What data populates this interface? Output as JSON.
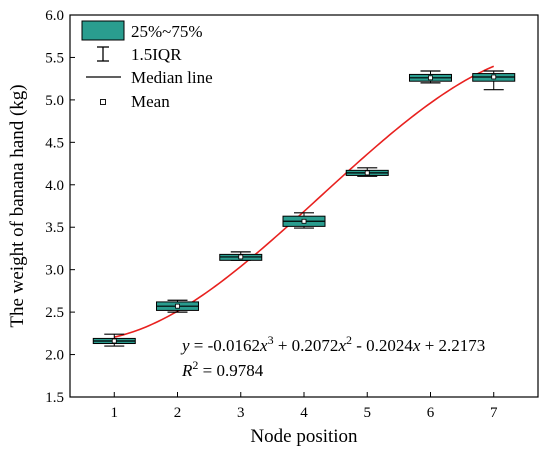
{
  "chart_data": {
    "type": "box",
    "xlabel": "Node position",
    "ylabel": "The weight of banana hand (kg)",
    "xlim": [
      0.3,
      7.7
    ],
    "ylim": [
      1.5,
      6.0
    ],
    "xticks": [
      1,
      2,
      3,
      4,
      5,
      6,
      7
    ],
    "yticks": [
      1.5,
      2.0,
      2.5,
      3.0,
      3.5,
      4.0,
      4.5,
      5.0,
      5.5,
      6.0
    ],
    "box_color": "#2a9d8f",
    "fit_color": "#e8211f",
    "boxes": [
      {
        "x": 1,
        "whisker_low": 2.1,
        "q1": 2.13,
        "median": 2.16,
        "q3": 2.19,
        "whisker_high": 2.24,
        "mean": 2.16
      },
      {
        "x": 2,
        "whisker_low": 2.5,
        "q1": 2.52,
        "median": 2.57,
        "q3": 2.62,
        "whisker_high": 2.64,
        "mean": 2.57
      },
      {
        "x": 3,
        "whisker_low": 3.11,
        "q1": 3.11,
        "median": 3.15,
        "q3": 3.18,
        "whisker_high": 3.21,
        "mean": 3.15
      },
      {
        "x": 4,
        "whisker_low": 3.49,
        "q1": 3.51,
        "median": 3.57,
        "q3": 3.63,
        "whisker_high": 3.67,
        "mean": 3.57
      },
      {
        "x": 5,
        "whisker_low": 4.1,
        "q1": 4.11,
        "median": 4.14,
        "q3": 4.17,
        "whisker_high": 4.2,
        "mean": 4.14
      },
      {
        "x": 6,
        "whisker_low": 5.2,
        "q1": 5.22,
        "median": 5.26,
        "q3": 5.3,
        "whisker_high": 5.34,
        "mean": 5.26
      },
      {
        "x": 7,
        "whisker_low": 5.12,
        "q1": 5.22,
        "median": 5.27,
        "q3": 5.31,
        "whisker_high": 5.34,
        "mean": 5.27
      }
    ],
    "fit": {
      "coefficients": [
        -0.0162,
        0.2072,
        -0.2024,
        2.2173
      ],
      "r2": 0.9784,
      "x_range": [
        1,
        7
      ]
    },
    "legend": {
      "placement": "top-left",
      "items": [
        {
          "kind": "box",
          "label": "25%~75%"
        },
        {
          "kind": "whisker",
          "label": "1.5IQR"
        },
        {
          "kind": "line",
          "label": "Median line"
        },
        {
          "kind": "square",
          "label": "Mean"
        }
      ]
    },
    "annotations": {
      "equation": {
        "y": "y",
        "eq": " = -0.0162",
        "x": "x",
        "sup1": "3",
        "plus1": " + 0.2072",
        "sup2": "2",
        "rest": " - 0.2024",
        "plus2": " + 2.2173"
      },
      "r2": {
        "R": "R",
        "sup": "2",
        "eq": " = 0.9784"
      }
    }
  }
}
